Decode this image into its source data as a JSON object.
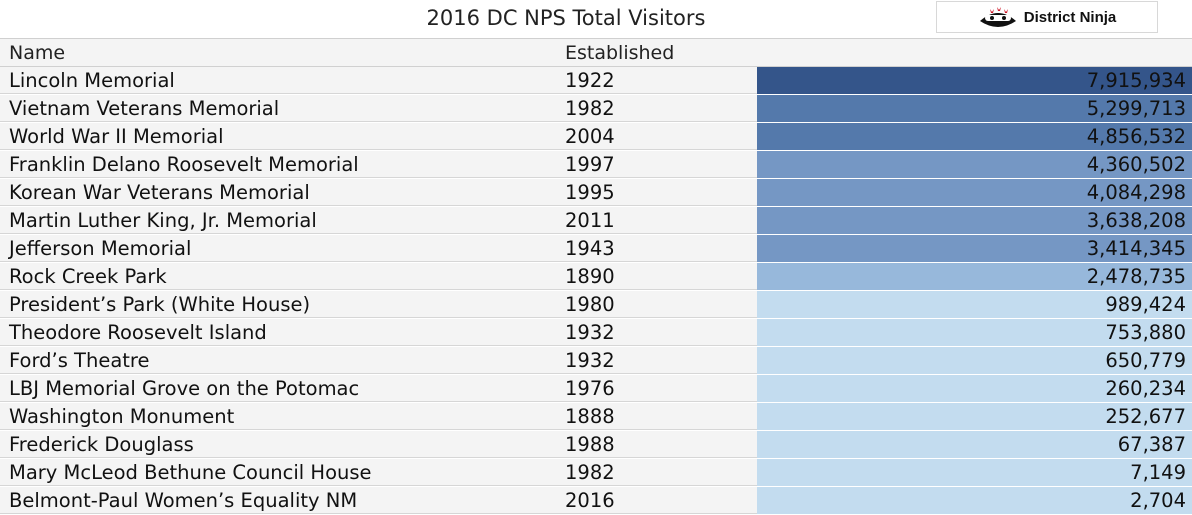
{
  "header": {
    "title": "2016 DC NPS Total Visitors",
    "logo_text": "District Ninja"
  },
  "table": {
    "columns": [
      "Name",
      "Established",
      ""
    ]
  },
  "colors": {
    "tier_1": "#34558a",
    "tier_2": "#5479ab",
    "tier_3": "#7597c4",
    "tier_4": "#97b8db",
    "tier_5": "#c3dcef"
  },
  "chart_data": {
    "type": "table",
    "title": "2016 DC NPS Total Visitors",
    "columns": [
      "Name",
      "Established",
      ""
    ],
    "rows": [
      {
        "name": "Lincoln Memorial",
        "established": "1922",
        "visitors": "7,915,934",
        "value": 7915934
      },
      {
        "name": "Vietnam Veterans Memorial",
        "established": "1982",
        "visitors": "5,299,713",
        "value": 5299713
      },
      {
        "name": "World War II Memorial",
        "established": "2004",
        "visitors": "4,856,532",
        "value": 4856532
      },
      {
        "name": "Franklin Delano Roosevelt Memorial",
        "established": "1997",
        "visitors": "4,360,502",
        "value": 4360502
      },
      {
        "name": "Korean War Veterans Memorial",
        "established": "1995",
        "visitors": "4,084,298",
        "value": 4084298
      },
      {
        "name": "Martin Luther King, Jr. Memorial",
        "established": "2011",
        "visitors": "3,638,208",
        "value": 3638208
      },
      {
        "name": "Jefferson Memorial",
        "established": "1943",
        "visitors": "3,414,345",
        "value": 3414345
      },
      {
        "name": "Rock Creek Park",
        "established": "1890",
        "visitors": "2,478,735",
        "value": 2478735
      },
      {
        "name": "President’s Park (White House)",
        "established": "1980",
        "visitors": "989,424",
        "value": 989424
      },
      {
        "name": "Theodore Roosevelt Island",
        "established": "1932",
        "visitors": "753,880",
        "value": 753880
      },
      {
        "name": "Ford’s Theatre",
        "established": "1932",
        "visitors": "650,779",
        "value": 650779
      },
      {
        "name": "LBJ Memorial Grove on the Potomac",
        "established": "1976",
        "visitors": "260,234",
        "value": 260234
      },
      {
        "name": "Washington Monument",
        "established": "1888",
        "visitors": "252,677",
        "value": 252677
      },
      {
        "name": "Frederick Douglass",
        "established": "1988",
        "visitors": "67,387",
        "value": 67387
      },
      {
        "name": "Mary McLeod Bethune Council House",
        "established": "1982",
        "visitors": "7,149",
        "value": 7149
      },
      {
        "name": "Belmont-Paul Women’s Equality NM",
        "established": "2016",
        "visitors": "2,704",
        "value": 2704
      }
    ]
  }
}
